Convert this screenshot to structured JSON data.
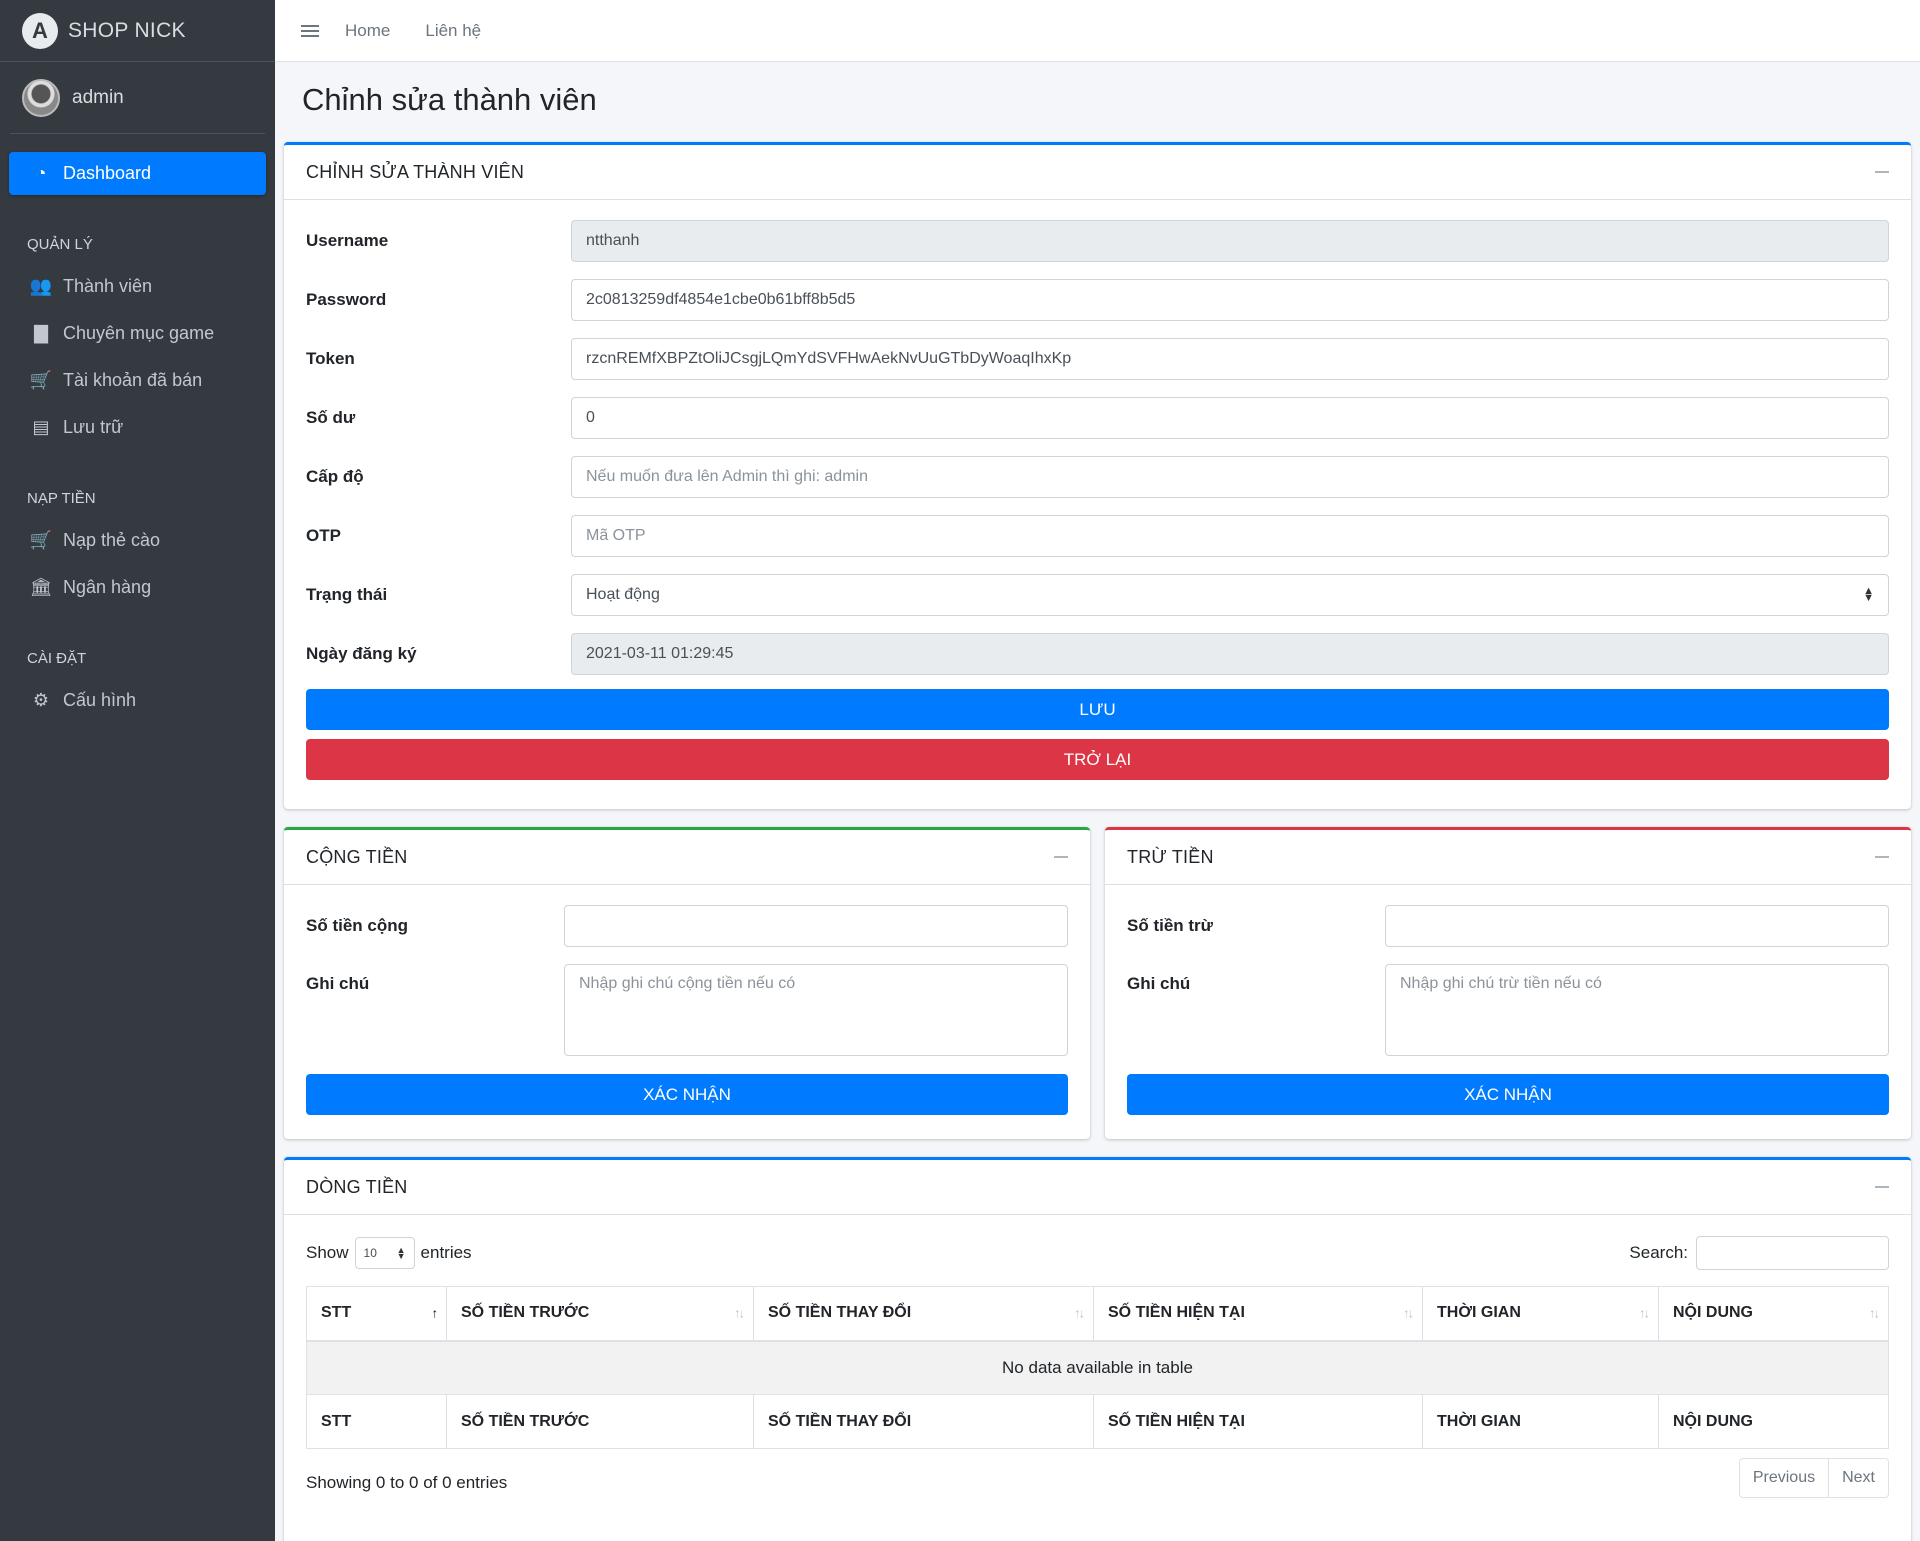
{
  "brand": {
    "name": "SHOP NICK",
    "logo_letter": "A"
  },
  "user": {
    "name": "admin"
  },
  "sidebar": {
    "dashboard": "Dashboard",
    "sections": [
      {
        "header": "QUẢN LÝ",
        "items": [
          {
            "label": "Thành viên",
            "icon": "users-icon"
          },
          {
            "label": "Chuyên mục game",
            "icon": "file-icon"
          },
          {
            "label": "Tài khoản đã bán",
            "icon": "cart-icon"
          },
          {
            "label": "Lưu trữ",
            "icon": "box-icon"
          }
        ]
      },
      {
        "header": "NẠP TIỀN",
        "items": [
          {
            "label": "Nạp thẻ cào",
            "icon": "cart-icon"
          },
          {
            "label": "Ngân hàng",
            "icon": "bank-icon"
          }
        ]
      },
      {
        "header": "CÀI ĐẶT",
        "items": [
          {
            "label": "Cấu hình",
            "icon": "gear-icon"
          }
        ]
      }
    ]
  },
  "topbar": {
    "home": "Home",
    "contact": "Liên hệ"
  },
  "page": {
    "title": "Chỉnh sửa thành viên"
  },
  "edit_card": {
    "title": "CHỈNH SỬA THÀNH VIÊN",
    "fields": {
      "username": {
        "label": "Username",
        "value": "ntthanh"
      },
      "password": {
        "label": "Password",
        "value": "2c0813259df4854e1cbe0b61bff8b5d5"
      },
      "token": {
        "label": "Token",
        "value": "rzcnREMfXBPZtOliJCsgjLQmYdSVFHwAekNvUuGTbDyWoaqIhxKp"
      },
      "balance": {
        "label": "Số dư",
        "value": "0"
      },
      "level": {
        "label": "Cấp độ",
        "placeholder": "Nếu muốn đưa lên Admin thì ghi: admin"
      },
      "otp": {
        "label": "OTP",
        "placeholder": "Mã OTP"
      },
      "status": {
        "label": "Trạng thái",
        "value": "Hoạt động"
      },
      "register_date": {
        "label": "Ngày đăng ký",
        "value": "2021-03-11 01:29:45"
      }
    },
    "save_label": "LƯU",
    "back_label": "TRỞ LẠI"
  },
  "add_card": {
    "title": "CỘNG TIỀN",
    "amount_label": "Số tiền cộng",
    "note_label": "Ghi chú",
    "note_placeholder": "Nhập ghi chú cộng tiền nếu có",
    "submit_label": "XÁC NHẬN"
  },
  "sub_card": {
    "title": "TRỪ TIỀN",
    "amount_label": "Số tiền trừ",
    "note_label": "Ghi chú",
    "note_placeholder": "Nhập ghi chú trừ tiền nếu có",
    "submit_label": "XÁC NHẬN"
  },
  "cashflow": {
    "title": "DÒNG TIỀN",
    "show_label": "Show",
    "entries_label": "entries",
    "page_length": "10",
    "search_label": "Search:",
    "columns": [
      "STT",
      "SỐ TIỀN TRƯỚC",
      "SỐ TIỀN THAY ĐỔI",
      "SỐ TIỀN HIỆN TẠI",
      "THỜI GIAN",
      "NỘI DUNG"
    ],
    "empty_text": "No data available in table",
    "info": "Showing 0 to 0 of 0 entries",
    "previous": "Previous",
    "next": "Next"
  }
}
